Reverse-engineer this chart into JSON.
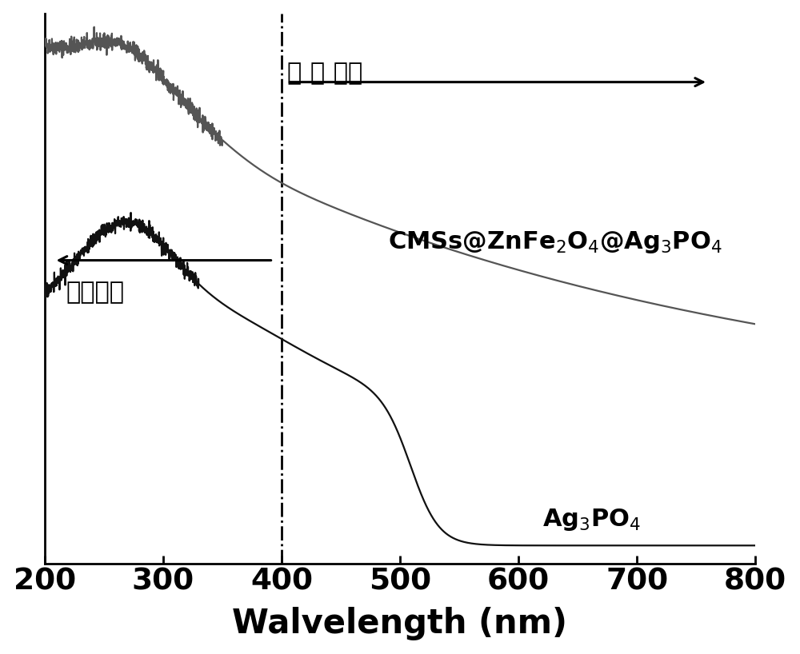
{
  "xlabel": "Walvelength (nm)",
  "xlim": [
    200,
    800
  ],
  "background_color": "#ffffff",
  "xlabel_fontsize": 30,
  "tick_fontsize": 27,
  "vline_x": 400,
  "annotation_visible_text": "可 见 光区",
  "annotation_uv_text": "紫外光区",
  "label_composite": "CMSs@ZnFe$_2$O$_4$@Ag$_3$PO$_4$",
  "label_ag3po4": "Ag$_3$PO$_4$",
  "line_color_composite": "#555555",
  "line_color_ag3po4": "#111111",
  "annotation_fontsize": 22,
  "label_fontsize": 22
}
